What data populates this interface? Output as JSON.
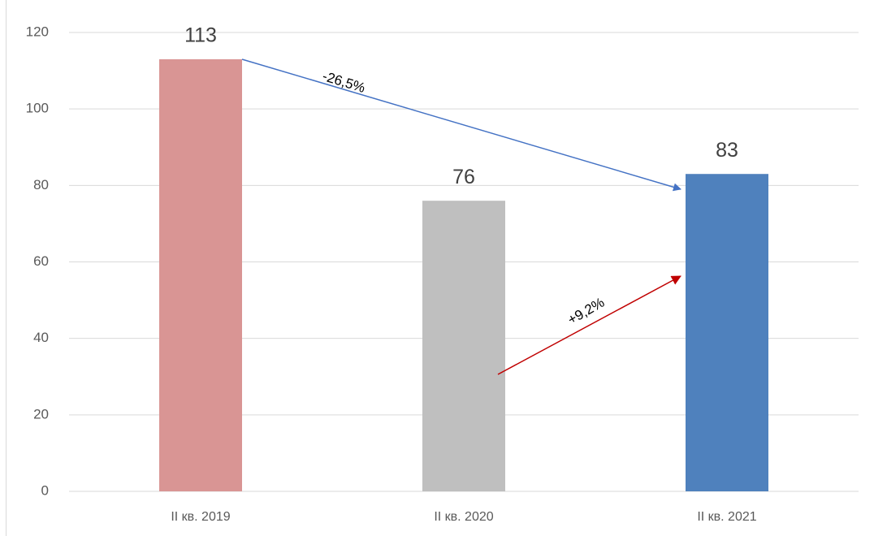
{
  "chart_data": {
    "type": "bar",
    "categories": [
      "II кв. 2019",
      "II кв. 2020",
      "II кв. 2021"
    ],
    "values": [
      113,
      76,
      83
    ],
    "colors": [
      "#d99594",
      "#bfbfbf",
      "#4f81bd"
    ],
    "ylim": [
      0,
      120
    ],
    "yticks": [
      0,
      20,
      40,
      60,
      80,
      100,
      120
    ],
    "grid": true,
    "annotations": [
      "-26,5%",
      "+9,2%"
    ]
  }
}
